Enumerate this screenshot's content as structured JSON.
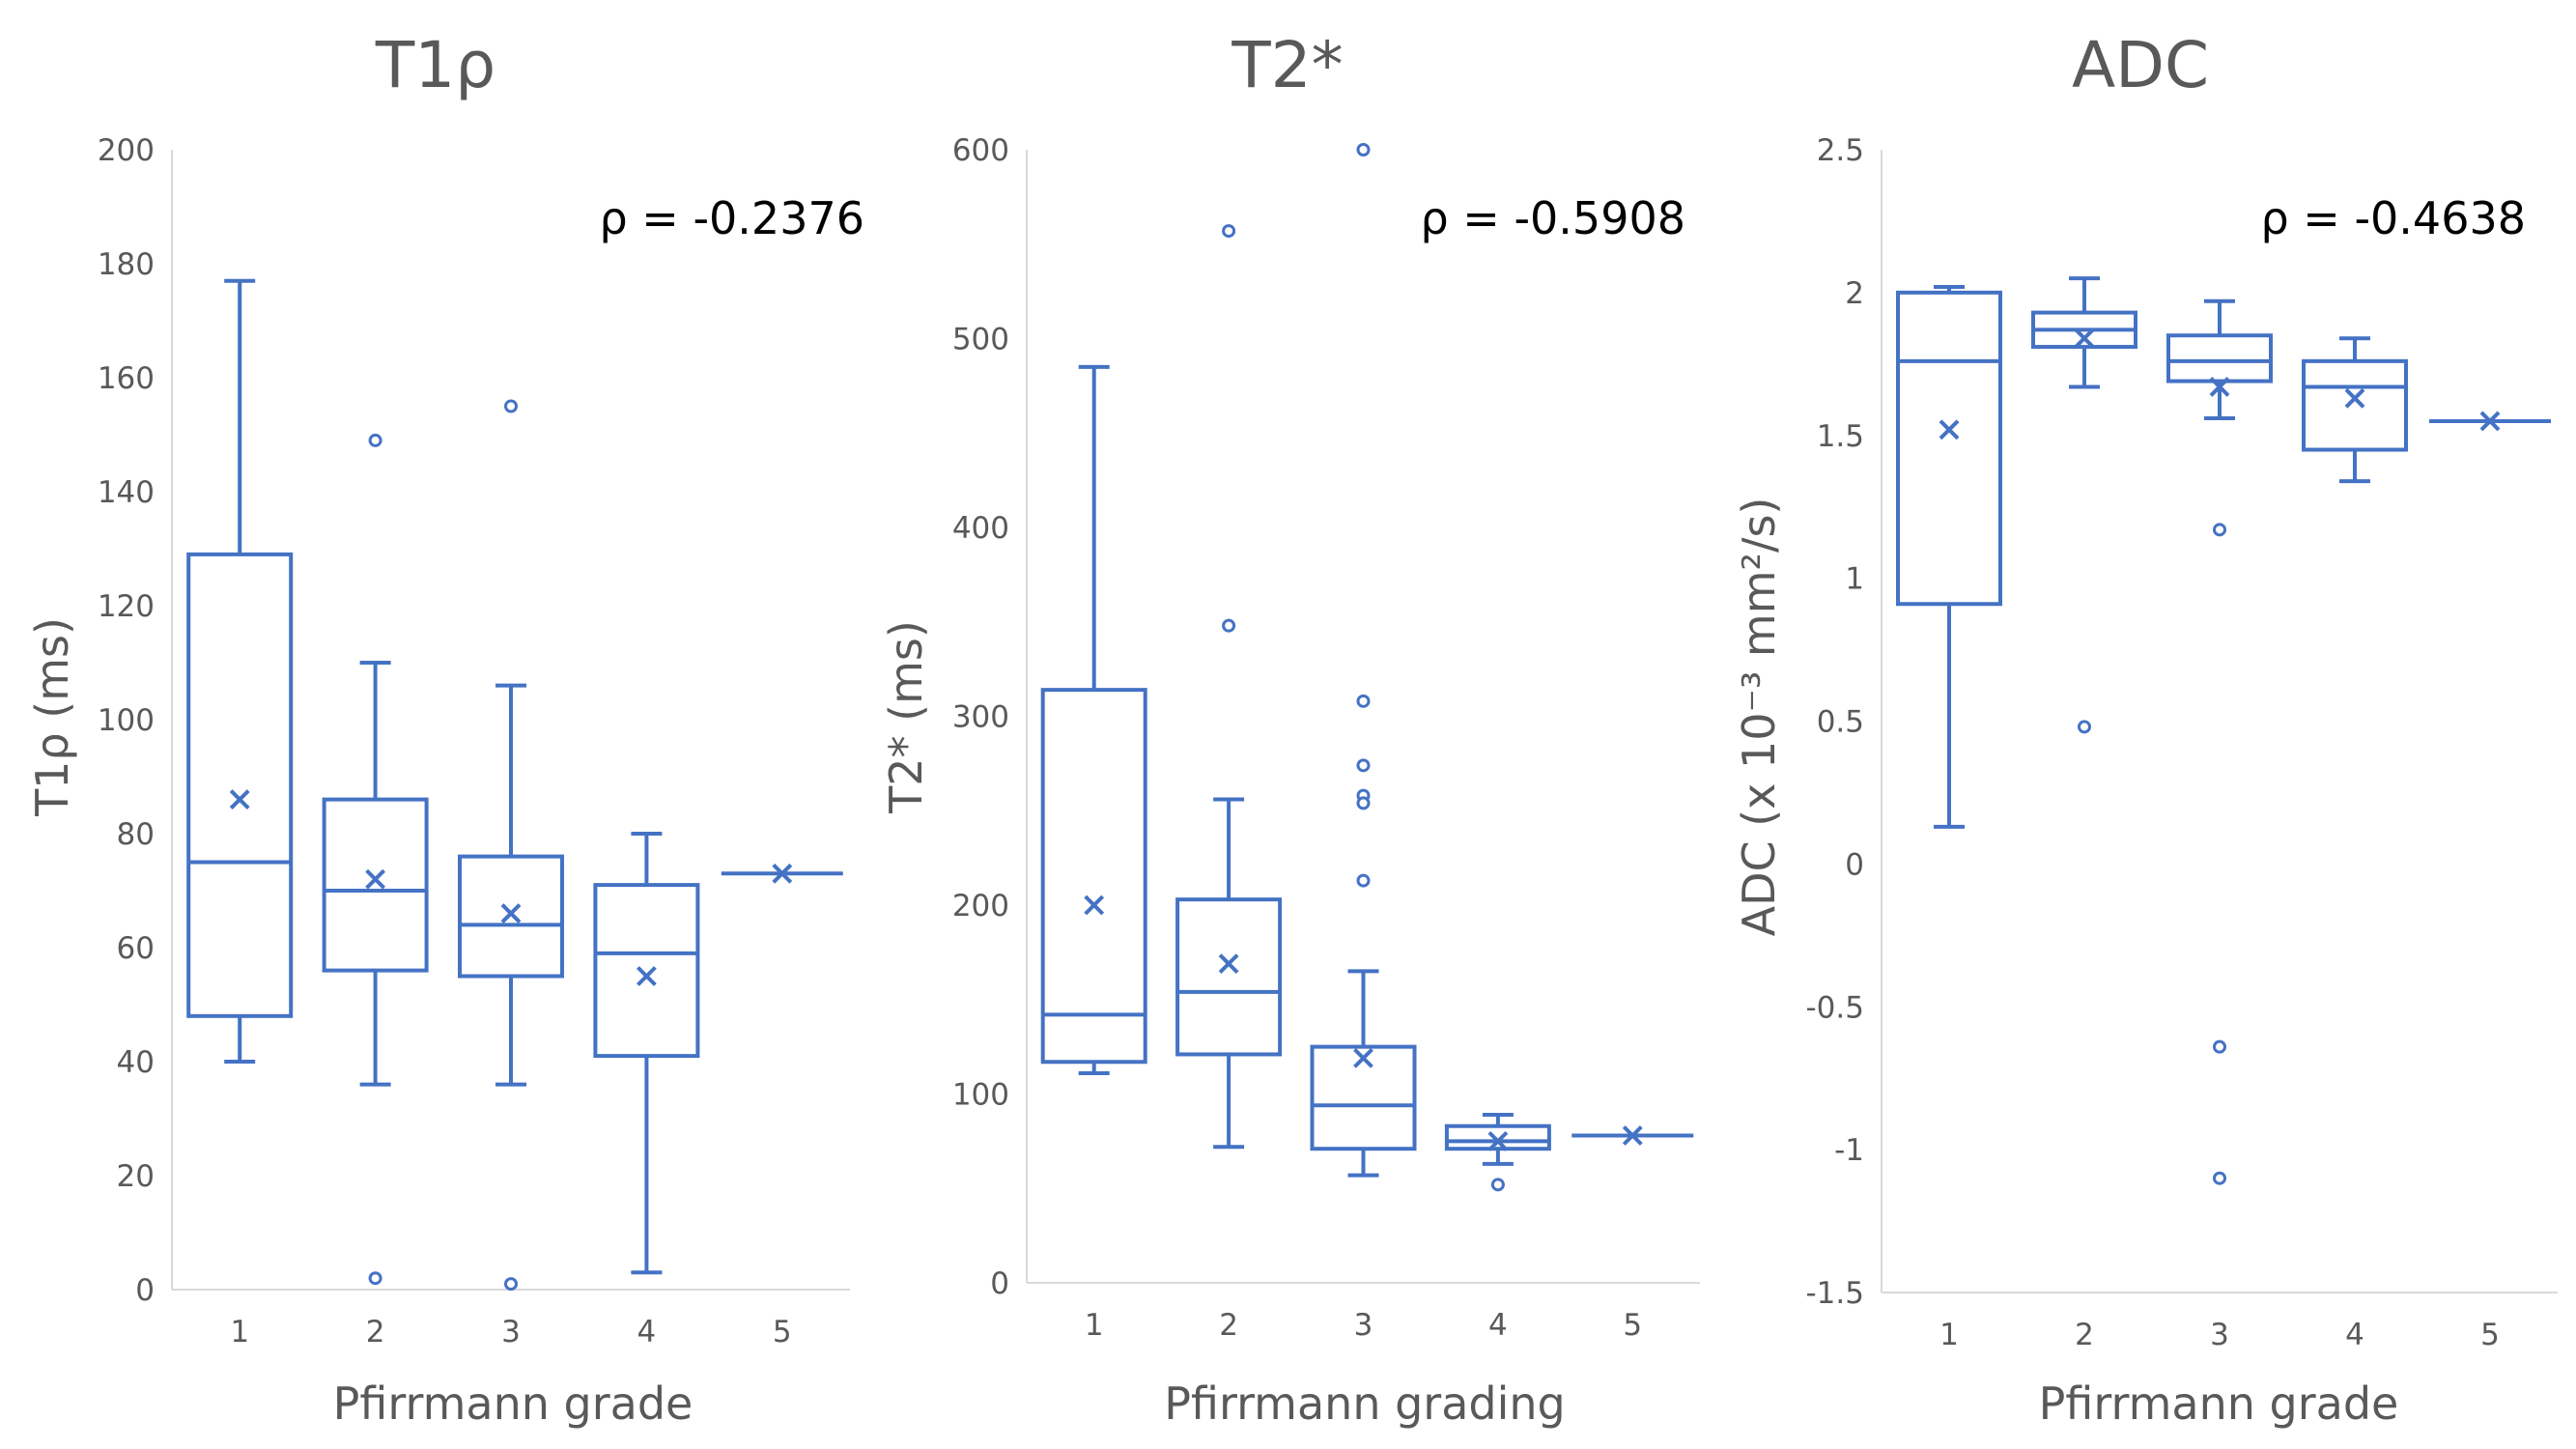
{
  "colors": {
    "series": "#4472c4",
    "axis": "#d9d9d9",
    "text": "#595959",
    "annotation": "#000000"
  },
  "chart_data": [
    {
      "type": "box",
      "title": "T1ρ",
      "xlabel": "Pfirrmann grade",
      "ylabel": "T1ρ (ms)",
      "annotation": "ρ = -0.2376",
      "ylim": [
        0,
        200
      ],
      "yticks": [
        0,
        20,
        40,
        60,
        80,
        100,
        120,
        140,
        160,
        180,
        200
      ],
      "ytick_labels": [
        "0",
        "20",
        "40",
        "60",
        "80",
        "100",
        "120",
        "140",
        "160",
        "180",
        "200"
      ],
      "categories": [
        "1",
        "2",
        "3",
        "4",
        "5"
      ],
      "boxes": [
        {
          "min": 40,
          "q1": 48,
          "median": 75,
          "q3": 129,
          "max": 177,
          "mean": 86,
          "outliers": []
        },
        {
          "min": 36,
          "q1": 56,
          "median": 70,
          "q3": 86,
          "max": 110,
          "mean": 72,
          "outliers": [
            149,
            2
          ]
        },
        {
          "min": 36,
          "q1": 55,
          "median": 64,
          "q3": 76,
          "max": 106,
          "mean": 66,
          "outliers": [
            155,
            1
          ]
        },
        {
          "min": 3,
          "q1": 41,
          "median": 59,
          "q3": 71,
          "max": 80,
          "mean": 55,
          "outliers": []
        },
        {
          "min": 73,
          "q1": 73,
          "median": 73,
          "q3": 73,
          "max": 73,
          "mean": 73,
          "outliers": []
        }
      ]
    },
    {
      "type": "box",
      "title": "T2*",
      "xlabel": "Pfirrmann grading",
      "ylabel": "T2* (ms)",
      "annotation": "ρ = -0.5908",
      "ylim": [
        0,
        600
      ],
      "yticks": [
        0,
        100,
        200,
        300,
        400,
        500,
        600
      ],
      "ytick_labels": [
        "0",
        "100",
        "200",
        "300",
        "400",
        "500",
        "600"
      ],
      "categories": [
        "1",
        "2",
        "3",
        "4",
        "5"
      ],
      "boxes": [
        {
          "min": 111,
          "q1": 117,
          "median": 142,
          "q3": 314,
          "max": 485,
          "mean": 200,
          "outliers": []
        },
        {
          "min": 72,
          "q1": 121,
          "median": 154,
          "q3": 203,
          "max": 256,
          "mean": 169,
          "outliers": [
            557,
            348
          ]
        },
        {
          "min": 57,
          "q1": 71,
          "median": 94,
          "q3": 125,
          "max": 165,
          "mean": 119,
          "outliers": [
            600,
            308,
            274,
            258,
            254,
            213
          ]
        },
        {
          "min": 63,
          "q1": 71,
          "median": 75,
          "q3": 83,
          "max": 89,
          "mean": 75,
          "outliers": [
            52
          ]
        },
        {
          "min": 78,
          "q1": 78,
          "median": 78,
          "q3": 78,
          "max": 78,
          "mean": 78,
          "outliers": []
        }
      ]
    },
    {
      "type": "box",
      "title": "ADC",
      "xlabel": "Pfirrmann grade",
      "ylabel": "ADC (x 10⁻³ mm²/s)",
      "annotation": "ρ = -0.4638",
      "ylim": [
        -1.5,
        2.5
      ],
      "yticks": [
        -1.5,
        -1,
        -0.5,
        0,
        0.5,
        1,
        1.5,
        2,
        2.5
      ],
      "ytick_labels": [
        "-1.5",
        "-1",
        "-0.5",
        "0",
        "0.5",
        "1",
        "1.5",
        "2",
        "2.5"
      ],
      "categories": [
        "1",
        "2",
        "3",
        "4",
        "5"
      ],
      "boxes": [
        {
          "min": 0.13,
          "q1": 0.91,
          "median": 1.76,
          "q3": 2.0,
          "max": 2.02,
          "mean": 1.52,
          "outliers": []
        },
        {
          "min": 1.67,
          "q1": 1.81,
          "median": 1.87,
          "q3": 1.93,
          "max": 2.05,
          "mean": 1.84,
          "outliers": [
            0.48
          ]
        },
        {
          "min": 1.56,
          "q1": 1.69,
          "median": 1.76,
          "q3": 1.85,
          "max": 1.97,
          "mean": 1.67,
          "outliers": [
            1.17,
            -0.64,
            -1.1
          ]
        },
        {
          "min": 1.34,
          "q1": 1.45,
          "median": 1.67,
          "q3": 1.76,
          "max": 1.84,
          "mean": 1.63,
          "outliers": []
        },
        {
          "min": 1.55,
          "q1": 1.55,
          "median": 1.55,
          "q3": 1.55,
          "max": 1.55,
          "mean": 1.55,
          "outliers": []
        }
      ]
    }
  ]
}
